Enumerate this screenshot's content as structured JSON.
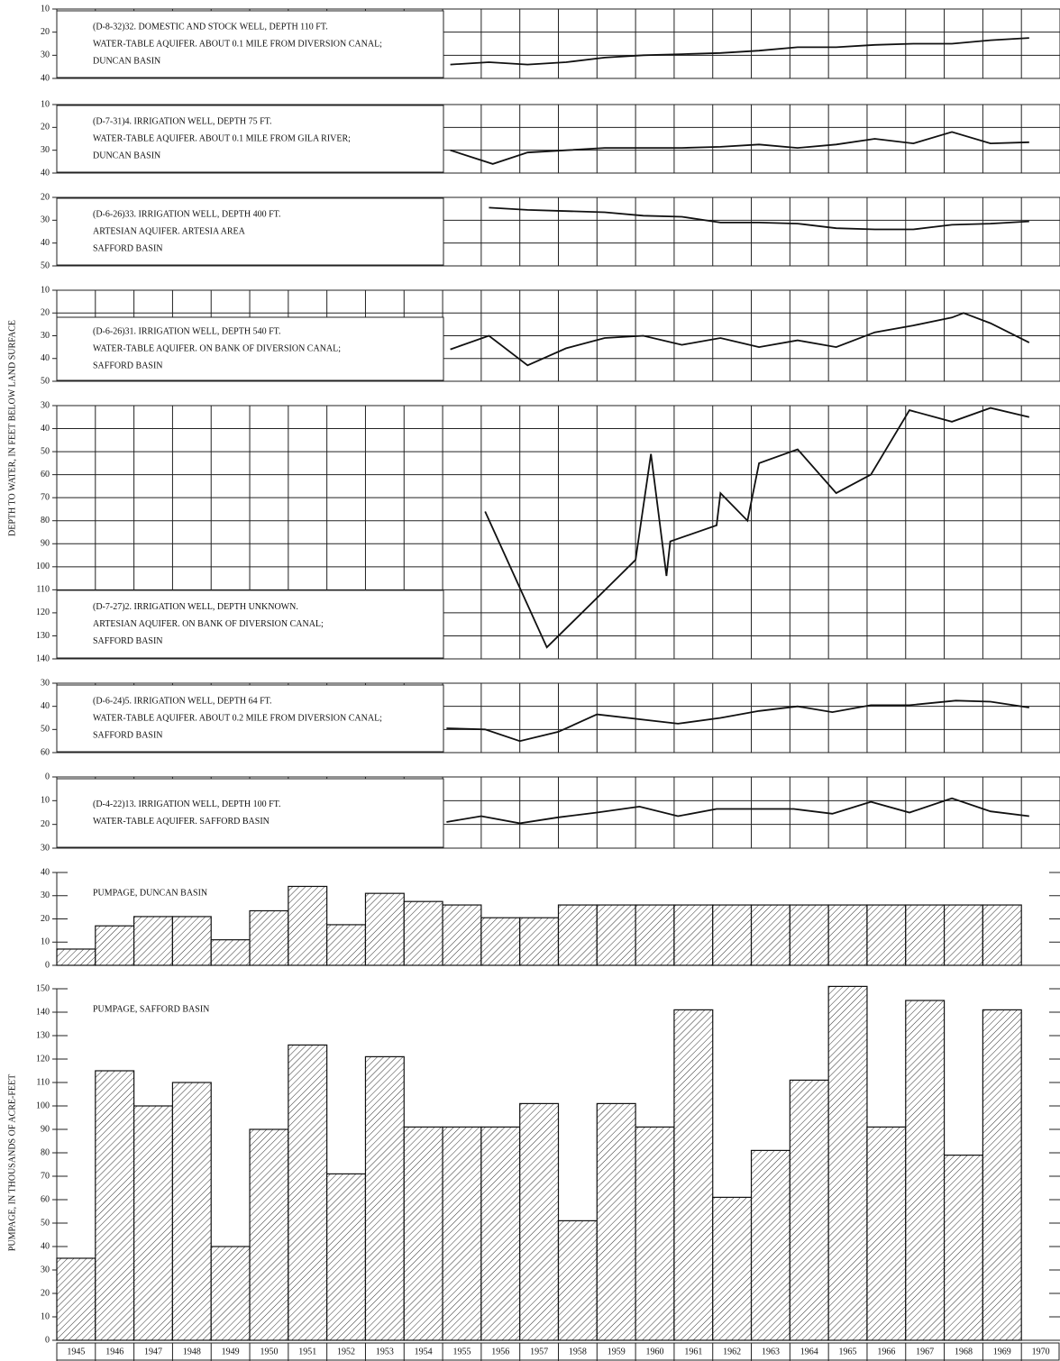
{
  "depth_axis_label": "DEPTH TO WATER, IN FEET BELOW LAND SURFACE",
  "pumpage_axis_label": "PUMPAGE, IN THOUSANDS OF ACRE-FEET",
  "chart_data": [
    {
      "type": "line",
      "annotation": [
        "(D-8-32)32. DOMESTIC AND STOCK WELL, DEPTH 110 FT.",
        "WATER-TABLE AQUIFER. ABOUT 0.1 MILE FROM DIVERSION CANAL;",
        "DUNCAN BASIN"
      ],
      "x": [
        1955.2,
        1956.2,
        1957.2,
        1958.2,
        1959.2,
        1960.2,
        1961.2,
        1962.2,
        1963.2,
        1964.2,
        1965.2,
        1966.2,
        1967.2,
        1968.2,
        1969.2,
        1970.2
      ],
      "values": [
        34,
        33,
        34,
        33,
        31,
        30,
        29.5,
        29,
        28,
        26.5,
        26.5,
        25.5,
        25,
        25,
        23.5,
        22.5
      ],
      "xlim": [
        1945,
        1971
      ],
      "ylim": [
        10,
        40
      ],
      "yticks": [
        10,
        20,
        30,
        40
      ],
      "y_inverted": true,
      "grid": true,
      "color": "#111"
    },
    {
      "type": "line",
      "annotation": [
        "(D-7-31)4. IRRIGATION WELL, DEPTH 75 FT.",
        "WATER-TABLE AQUIFER. ABOUT 0.1 MILE FROM GILA RIVER;",
        "DUNCAN BASIN"
      ],
      "x": [
        1955.2,
        1956.3,
        1957.2,
        1958.2,
        1959.2,
        1960.2,
        1961.2,
        1962.2,
        1963.2,
        1964.2,
        1965.2,
        1966.2,
        1967.2,
        1968.2,
        1969.2,
        1970.2
      ],
      "values": [
        30,
        36,
        31,
        30,
        29,
        29,
        29,
        28.5,
        27.5,
        29,
        27.5,
        25,
        27,
        22,
        27,
        26.5
      ],
      "xlim": [
        1945,
        1971
      ],
      "ylim": [
        10,
        40
      ],
      "yticks": [
        10,
        20,
        30,
        40
      ],
      "y_inverted": true,
      "grid": true,
      "color": "#111"
    },
    {
      "type": "line",
      "annotation": [
        "(D-6-26)33. IRRIGATION WELL, DEPTH 400 FT.",
        "ARTESIAN AQUIFER. ARTESIA AREA",
        "SAFFORD BASIN"
      ],
      "x": [
        1956.2,
        1957.2,
        1958.2,
        1959.2,
        1960.2,
        1961.2,
        1962.2,
        1963.2,
        1964.2,
        1965.2,
        1966.2,
        1967.2,
        1968.2,
        1969.2,
        1970.2
      ],
      "values": [
        24.5,
        25.5,
        26,
        26.5,
        28,
        28.5,
        31,
        31,
        31.5,
        33.5,
        34,
        34,
        32,
        31.5,
        30.5
      ],
      "xlim": [
        1945,
        1971
      ],
      "ylim": [
        20,
        50
      ],
      "yticks": [
        20,
        30,
        40,
        50
      ],
      "y_inverted": true,
      "grid": true,
      "color": "#111"
    },
    {
      "type": "line",
      "annotation": [
        "(D-6-26)31. IRRIGATION WELL, DEPTH 540 FT.",
        "WATER-TABLE AQUIFER. ON BANK OF DIVERSION CANAL;",
        "SAFFORD BASIN"
      ],
      "x": [
        1955.2,
        1956.2,
        1957.2,
        1958.2,
        1959.2,
        1960.2,
        1961.2,
        1962.2,
        1963.2,
        1964.2,
        1965.2,
        1966.2,
        1967.2,
        1968.2,
        1968.5,
        1969.2,
        1970.2
      ],
      "values": [
        36,
        30,
        43,
        35.5,
        31,
        30,
        34,
        31,
        35,
        32,
        35,
        28.5,
        25.5,
        22,
        20,
        24.5,
        33
      ],
      "xlim": [
        1945,
        1971
      ],
      "ylim": [
        10,
        50
      ],
      "yticks": [
        10,
        20,
        30,
        40,
        50
      ],
      "y_inverted": true,
      "grid": true,
      "color": "#111"
    },
    {
      "type": "line",
      "annotation": [
        "(D-7-27)2. IRRIGATION WELL, DEPTH UNKNOWN.",
        "ARTESIAN AQUIFER. ON BANK OF DIVERSION CANAL;",
        "SAFFORD BASIN"
      ],
      "x": [
        1956.1,
        1957.7,
        1960.0,
        1960.4,
        1960.8,
        1960.9,
        1962.1,
        1962.2,
        1962.9,
        1963.2,
        1964.2,
        1965.2,
        1966.1,
        1967.1,
        1968.2,
        1969.2,
        1970.2
      ],
      "values": [
        76,
        135,
        97,
        51,
        104,
        89,
        82,
        68,
        80,
        55,
        49,
        68,
        60,
        32,
        37,
        31,
        35
      ],
      "xlim": [
        1945,
        1971
      ],
      "ylim": [
        30,
        140
      ],
      "yticks": [
        30,
        40,
        50,
        60,
        70,
        80,
        90,
        100,
        110,
        120,
        130,
        140
      ],
      "y_inverted": true,
      "grid": true,
      "color": "#111"
    },
    {
      "type": "line",
      "annotation": [
        "(D-6-24)5. IRRIGATION WELL, DEPTH 64 FT.",
        "WATER-TABLE AQUIFER. ABOUT 0.2 MILE FROM DIVERSION CANAL;",
        "SAFFORD BASIN"
      ],
      "x": [
        1955.1,
        1956.1,
        1957.0,
        1958.0,
        1959.0,
        1961.1,
        1962.2,
        1963.2,
        1964.2,
        1965.1,
        1966.1,
        1967.1,
        1968.3,
        1969.2,
        1970.2
      ],
      "values": [
        49.5,
        50,
        55,
        51,
        43.5,
        47.5,
        45,
        42,
        40,
        42.5,
        39.5,
        39.5,
        37.5,
        38,
        40.5
      ],
      "xlim": [
        1945,
        1971
      ],
      "ylim": [
        30,
        60
      ],
      "yticks": [
        30,
        40,
        50,
        60
      ],
      "y_inverted": true,
      "grid": true,
      "color": "#111"
    },
    {
      "type": "line",
      "annotation": [
        "(D-4-22)13. IRRIGATION WELL, DEPTH 100 FT.",
        "WATER-TABLE AQUIFER. SAFFORD BASIN"
      ],
      "x": [
        1955.1,
        1956.0,
        1957.0,
        1958.0,
        1959.0,
        1960.1,
        1961.1,
        1962.1,
        1963.1,
        1964.1,
        1965.1,
        1966.1,
        1967.1,
        1968.2,
        1969.2,
        1970.2
      ],
      "values": [
        19,
        16.5,
        19.5,
        17,
        15,
        12.5,
        16.5,
        13.5,
        13.5,
        13.5,
        15.5,
        10.5,
        15,
        9,
        14.5,
        16.5
      ],
      "xlim": [
        1945,
        1971
      ],
      "ylim": [
        0,
        30
      ],
      "yticks": [
        0,
        10,
        20,
        30
      ],
      "y_inverted": true,
      "grid": true,
      "color": "#111"
    },
    {
      "type": "bar",
      "title": "PUMPAGE, DUNCAN BASIN",
      "values": [
        7,
        17,
        21,
        21,
        11,
        23.5,
        34,
        17.5,
        31,
        27.5,
        26,
        20.5,
        20.5,
        26,
        26,
        26,
        26,
        26,
        26,
        26,
        26,
        26,
        26,
        26,
        26
      ],
      "ylim": [
        0,
        40
      ],
      "yticks": [
        0,
        10,
        20,
        30,
        40
      ],
      "color": "#111"
    },
    {
      "type": "bar",
      "title": "PUMPAGE, SAFFORD BASIN",
      "categories": [
        "1945",
        "1946",
        "1947",
        "1948",
        "1949",
        "1950",
        "1951",
        "1952",
        "1953",
        "1954",
        "1955",
        "1956",
        "1957",
        "1958",
        "1959",
        "1960",
        "1961",
        "1962",
        "1963",
        "1964",
        "1965",
        "1966",
        "1967",
        "1968",
        "1969",
        "1970"
      ],
      "values": [
        35,
        115,
        100,
        110,
        40,
        90,
        126,
        71,
        121,
        91,
        91,
        91,
        101,
        51,
        101,
        91,
        141,
        61,
        81,
        111,
        151,
        91,
        145,
        79,
        141,
        null
      ],
      "ylim": [
        0,
        150
      ],
      "yticks": [
        0,
        10,
        20,
        30,
        40,
        50,
        60,
        70,
        80,
        90,
        100,
        110,
        120,
        130,
        140,
        150
      ],
      "color": "#111"
    }
  ]
}
